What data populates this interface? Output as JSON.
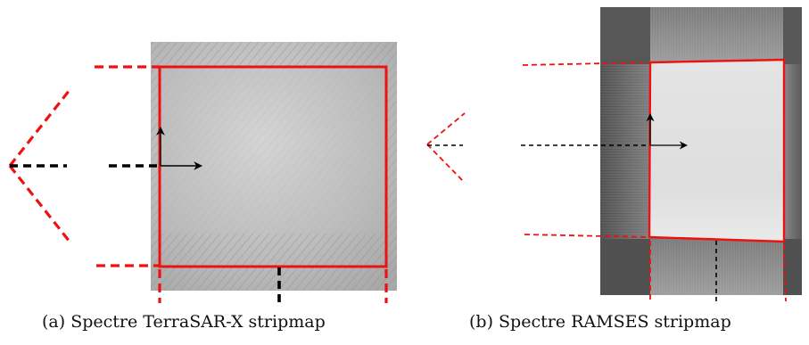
{
  "panels": [
    {
      "caption": "(a) Spectre TerraSAR-X stripmap"
    },
    {
      "caption": "(b) Spectre RAMSES stripmap"
    }
  ],
  "colors": {
    "outline_red": "#ee1111",
    "arrow_black": "#000000",
    "spectrum_light_a": "#c6c6c6",
    "spectrum_dark_a": "#8d8d8d",
    "spectrum_light_b": "#dcdcdc",
    "spectrum_dark_b": "#555555"
  }
}
